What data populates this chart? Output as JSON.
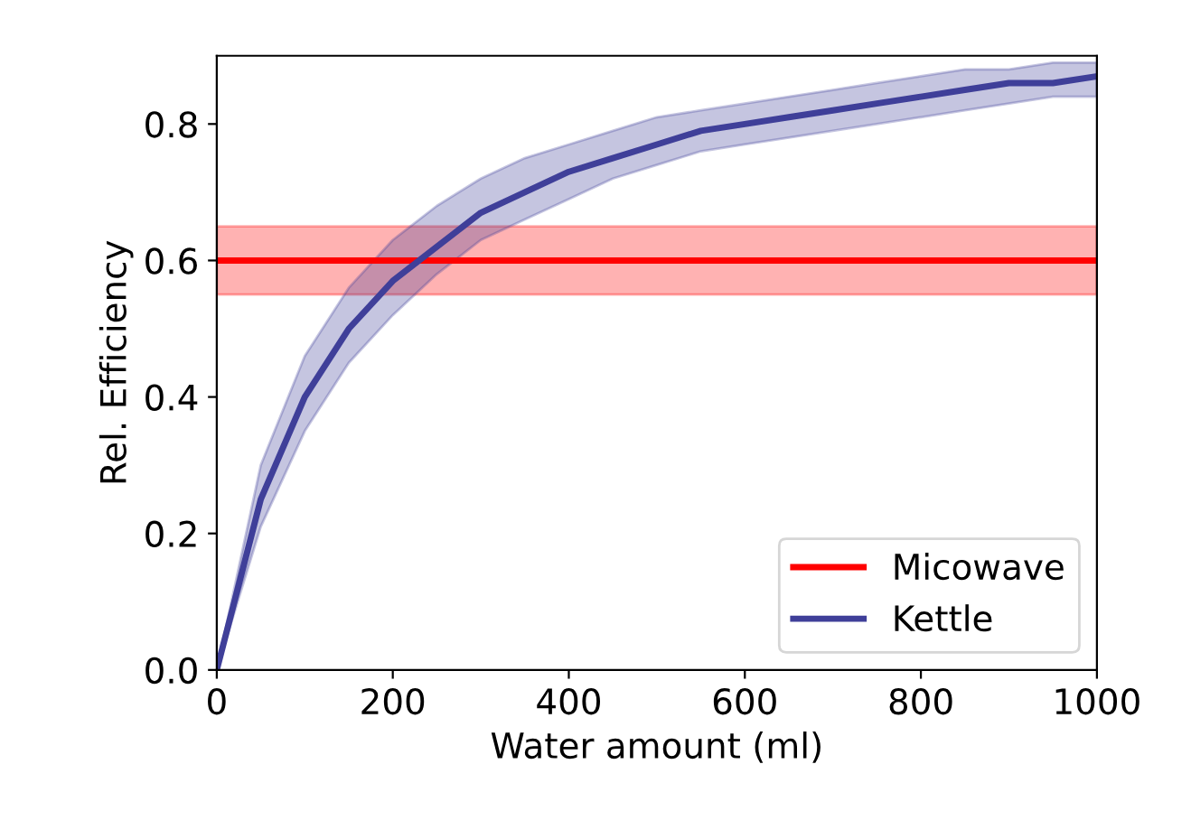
{
  "chart_data": {
    "type": "line",
    "xlabel": "Water amount (ml)",
    "ylabel": "Rel. Efficiency",
    "series": [
      {
        "name": "Micowave",
        "color": "#ff0000",
        "x": [
          0,
          1000
        ],
        "values": [
          0.6,
          0.6
        ],
        "lower": [
          0.55,
          0.55
        ],
        "upper": [
          0.65,
          0.65
        ]
      },
      {
        "name": "Kettle",
        "color": "#3f3f99",
        "x": [
          0,
          50,
          100,
          150,
          200,
          250,
          300,
          350,
          400,
          450,
          500,
          550,
          600,
          650,
          700,
          750,
          800,
          850,
          900,
          950,
          1000
        ],
        "values": [
          0,
          0.25,
          0.4,
          0.5,
          0.57,
          0.62,
          0.67,
          0.7,
          0.73,
          0.75,
          0.77,
          0.79,
          0.8,
          0.81,
          0.82,
          0.83,
          0.84,
          0.85,
          0.86,
          0.86,
          0.87
        ],
        "lower": [
          0,
          0.21,
          0.35,
          0.45,
          0.52,
          0.58,
          0.63,
          0.66,
          0.69,
          0.72,
          0.74,
          0.76,
          0.77,
          0.78,
          0.79,
          0.8,
          0.81,
          0.82,
          0.83,
          0.84,
          0.84
        ],
        "upper": [
          0,
          0.3,
          0.46,
          0.56,
          0.63,
          0.68,
          0.72,
          0.75,
          0.77,
          0.79,
          0.81,
          0.82,
          0.83,
          0.84,
          0.85,
          0.86,
          0.87,
          0.88,
          0.88,
          0.89,
          0.89
        ]
      }
    ],
    "xlim": [
      0,
      1000
    ],
    "xticks": [
      0,
      200,
      400,
      600,
      800,
      1000
    ],
    "ylim": [
      0,
      0.9
    ],
    "yticks": [
      {
        "value": 0,
        "label": "0.0"
      },
      0.2,
      0.4,
      0.6,
      0.8
    ],
    "grid": false,
    "legend": "bottom right"
  }
}
